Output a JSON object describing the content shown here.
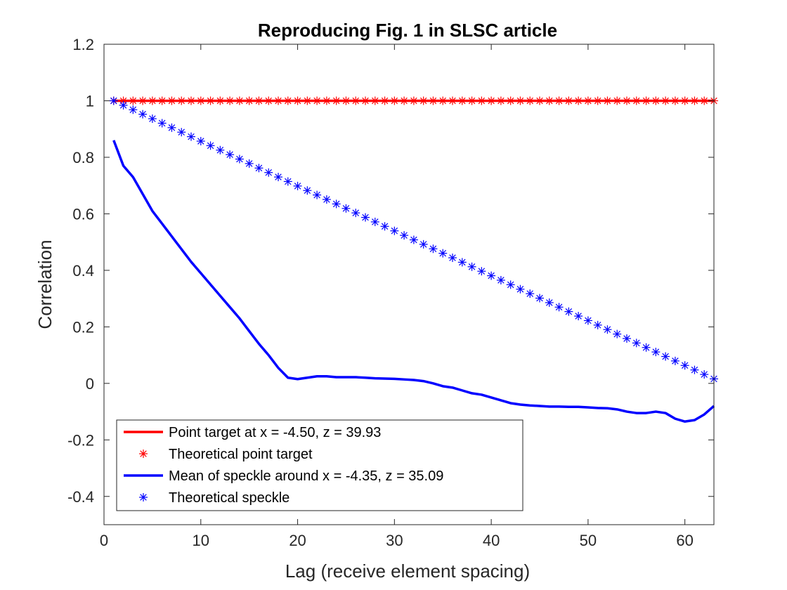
{
  "chart_data": {
    "type": "line",
    "title": "Reproducing Fig. 1 in SLSC article",
    "xlabel": "Lag (receive element spacing)",
    "ylabel": "Correlation",
    "xlim": [
      0,
      63
    ],
    "ylim": [
      -0.5,
      1.2
    ],
    "xticks": [
      0,
      10,
      20,
      30,
      40,
      50,
      60
    ],
    "yticks": [
      -0.4,
      -0.2,
      0,
      0.2,
      0.4,
      0.6,
      0.8,
      1,
      1.2
    ],
    "xtick_labels": [
      "0",
      "10",
      "20",
      "30",
      "40",
      "50",
      "60"
    ],
    "ytick_labels": [
      "-0.4",
      "-0.2",
      "0",
      "0.2",
      "0.4",
      "0.6",
      "0.8",
      "1",
      "1.2"
    ],
    "grid": false,
    "legend_position": "bottom-left",
    "series": [
      {
        "name": "Point target at x = -4.50, z = 39.93",
        "style": "line",
        "color": "#ff0000",
        "x": [
          1,
          63
        ],
        "y": [
          1.0,
          1.0
        ]
      },
      {
        "name": "Theoretical point target",
        "style": "markers",
        "marker": "asterisk",
        "color": "#ff0000",
        "x": [
          1,
          2,
          3,
          4,
          5,
          6,
          7,
          8,
          9,
          10,
          11,
          12,
          13,
          14,
          15,
          16,
          17,
          18,
          19,
          20,
          21,
          22,
          23,
          24,
          25,
          26,
          27,
          28,
          29,
          30,
          31,
          32,
          33,
          34,
          35,
          36,
          37,
          38,
          39,
          40,
          41,
          42,
          43,
          44,
          45,
          46,
          47,
          48,
          49,
          50,
          51,
          52,
          53,
          54,
          55,
          56,
          57,
          58,
          59,
          60,
          61,
          62,
          63
        ],
        "y": [
          1,
          1,
          1,
          1,
          1,
          1,
          1,
          1,
          1,
          1,
          1,
          1,
          1,
          1,
          1,
          1,
          1,
          1,
          1,
          1,
          1,
          1,
          1,
          1,
          1,
          1,
          1,
          1,
          1,
          1,
          1,
          1,
          1,
          1,
          1,
          1,
          1,
          1,
          1,
          1,
          1,
          1,
          1,
          1,
          1,
          1,
          1,
          1,
          1,
          1,
          1,
          1,
          1,
          1,
          1,
          1,
          1,
          1,
          1,
          1,
          1,
          1,
          1
        ]
      },
      {
        "name": "Mean of speckle around x = -4.35, z = 35.09",
        "style": "line",
        "color": "#0000ff",
        "x": [
          1,
          2,
          3,
          4,
          5,
          6,
          7,
          8,
          9,
          10,
          11,
          12,
          13,
          14,
          15,
          16,
          17,
          18,
          19,
          20,
          21,
          22,
          23,
          24,
          25,
          26,
          27,
          28,
          29,
          30,
          31,
          32,
          33,
          34,
          35,
          36,
          37,
          38,
          39,
          40,
          41,
          42,
          43,
          44,
          45,
          46,
          47,
          48,
          49,
          50,
          51,
          52,
          53,
          54,
          55,
          56,
          57,
          58,
          59,
          60,
          61,
          62,
          63
        ],
        "y": [
          0.86,
          0.77,
          0.73,
          0.67,
          0.61,
          0.565,
          0.52,
          0.475,
          0.43,
          0.39,
          0.35,
          0.31,
          0.27,
          0.23,
          0.185,
          0.14,
          0.1,
          0.055,
          0.02,
          0.015,
          0.02,
          0.025,
          0.025,
          0.022,
          0.022,
          0.022,
          0.02,
          0.018,
          0.017,
          0.016,
          0.014,
          0.012,
          0.008,
          0.0,
          -0.01,
          -0.015,
          -0.025,
          -0.035,
          -0.04,
          -0.05,
          -0.06,
          -0.07,
          -0.075,
          -0.078,
          -0.08,
          -0.082,
          -0.082,
          -0.083,
          -0.083,
          -0.085,
          -0.087,
          -0.088,
          -0.092,
          -0.1,
          -0.105,
          -0.105,
          -0.1,
          -0.105,
          -0.125,
          -0.135,
          -0.13,
          -0.11,
          -0.08
        ]
      },
      {
        "name": "Theoretical speckle",
        "style": "markers",
        "marker": "asterisk",
        "color": "#0000ff",
        "x": [
          1,
          2,
          3,
          4,
          5,
          6,
          7,
          8,
          9,
          10,
          11,
          12,
          13,
          14,
          15,
          16,
          17,
          18,
          19,
          20,
          21,
          22,
          23,
          24,
          25,
          26,
          27,
          28,
          29,
          30,
          31,
          32,
          33,
          34,
          35,
          36,
          37,
          38,
          39,
          40,
          41,
          42,
          43,
          44,
          45,
          46,
          47,
          48,
          49,
          50,
          51,
          52,
          53,
          54,
          55,
          56,
          57,
          58,
          59,
          60,
          61,
          62,
          63
        ],
        "y": [
          1,
          0.9841,
          0.9683,
          0.9524,
          0.9365,
          0.9206,
          0.9048,
          0.8889,
          0.873,
          0.8571,
          0.8413,
          0.8254,
          0.8095,
          0.7937,
          0.7778,
          0.7619,
          0.746,
          0.7302,
          0.7143,
          0.6984,
          0.6825,
          0.6667,
          0.6508,
          0.6349,
          0.619,
          0.6032,
          0.5873,
          0.5714,
          0.5556,
          0.5397,
          0.5238,
          0.5079,
          0.4921,
          0.4762,
          0.4603,
          0.4444,
          0.4286,
          0.4127,
          0.3968,
          0.381,
          0.3651,
          0.3492,
          0.3333,
          0.3175,
          0.3016,
          0.2857,
          0.2698,
          0.254,
          0.2381,
          0.2222,
          0.2063,
          0.1905,
          0.1746,
          0.1587,
          0.1429,
          0.127,
          0.1111,
          0.0952,
          0.0794,
          0.0635,
          0.0476,
          0.0317,
          0.0159
        ]
      }
    ]
  }
}
